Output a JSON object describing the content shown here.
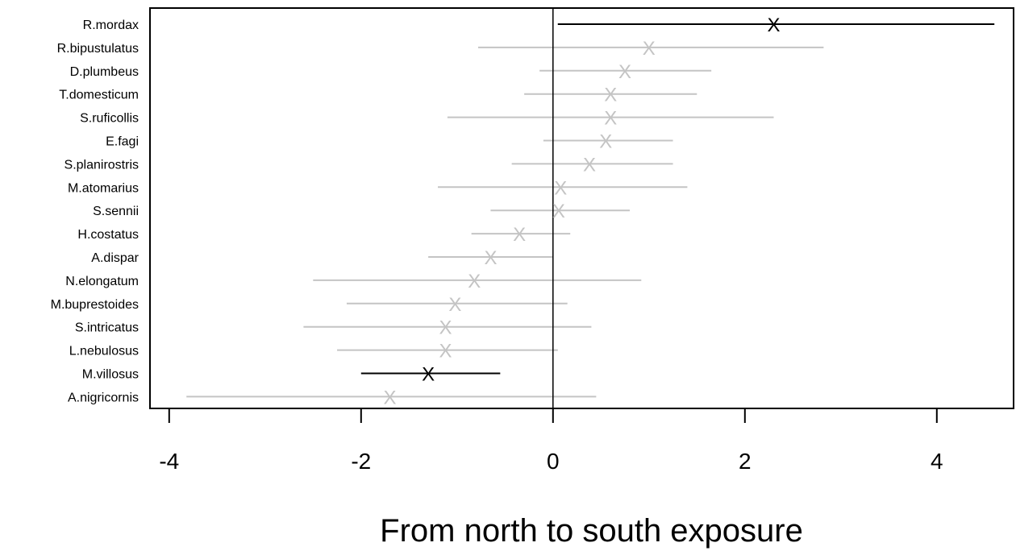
{
  "chart_data": {
    "type": "scatter",
    "subtype": "forest-plot",
    "title": "",
    "xlabel": "From north to south exposure",
    "ylabel": "",
    "xlim": [
      -4.2,
      4.8
    ],
    "xticks": [
      -4,
      -2,
      0,
      2,
      4
    ],
    "grid": false,
    "reference_line_x": 0,
    "marker_symbol": "X",
    "colors": {
      "significant": "#000000",
      "nonsignificant": "#c4c4c4"
    },
    "series": [
      {
        "label": "R.mordax",
        "estimate": 2.3,
        "lower": 0.05,
        "upper": 4.6,
        "significant": true
      },
      {
        "label": "R.bipustulatus",
        "estimate": 1.0,
        "lower": -0.78,
        "upper": 2.82,
        "significant": false
      },
      {
        "label": "D.plumbeus",
        "estimate": 0.75,
        "lower": -0.14,
        "upper": 1.65,
        "significant": false
      },
      {
        "label": "T.domesticum",
        "estimate": 0.6,
        "lower": -0.3,
        "upper": 1.5,
        "significant": false
      },
      {
        "label": "S.ruficollis",
        "estimate": 0.6,
        "lower": -1.1,
        "upper": 2.3,
        "significant": false
      },
      {
        "label": "E.fagi",
        "estimate": 0.55,
        "lower": -0.1,
        "upper": 1.25,
        "significant": false
      },
      {
        "label": "S.planirostris",
        "estimate": 0.38,
        "lower": -0.43,
        "upper": 1.25,
        "significant": false
      },
      {
        "label": "M.atomarius",
        "estimate": 0.08,
        "lower": -1.2,
        "upper": 1.4,
        "significant": false
      },
      {
        "label": "S.sennii",
        "estimate": 0.06,
        "lower": -0.65,
        "upper": 0.8,
        "significant": false
      },
      {
        "label": "H.costatus",
        "estimate": -0.35,
        "lower": -0.85,
        "upper": 0.18,
        "significant": false
      },
      {
        "label": "A.dispar",
        "estimate": -0.65,
        "lower": -1.3,
        "upper": 0.0,
        "significant": false
      },
      {
        "label": "N.elongatum",
        "estimate": -0.82,
        "lower": -2.5,
        "upper": 0.92,
        "significant": false
      },
      {
        "label": "M.buprestoides",
        "estimate": -1.02,
        "lower": -2.15,
        "upper": 0.15,
        "significant": false
      },
      {
        "label": "S.intricatus",
        "estimate": -1.12,
        "lower": -2.6,
        "upper": 0.4,
        "significant": false
      },
      {
        "label": "L.nebulosus",
        "estimate": -1.12,
        "lower": -2.25,
        "upper": 0.05,
        "significant": false
      },
      {
        "label": "M.villosus",
        "estimate": -1.3,
        "lower": -2.0,
        "upper": -0.55,
        "significant": true
      },
      {
        "label": "A.nigricornis",
        "estimate": -1.7,
        "lower": -3.82,
        "upper": 0.45,
        "significant": false
      }
    ]
  }
}
